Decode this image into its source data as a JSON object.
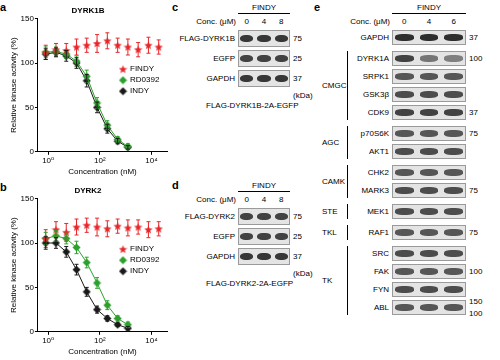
{
  "chart_data": [
    {
      "type": "line",
      "panel_label": "a",
      "title": "DYRK1B",
      "x_label": "Concentration (nM)",
      "y_label": "Relative kinase activity (%)",
      "log": "x",
      "xlim": [
        0.4,
        40000
      ],
      "xticks": [
        {
          "value": 1,
          "label": "10⁰"
        },
        {
          "value": 100,
          "label": "10²"
        },
        {
          "value": 10000,
          "label": "10⁴"
        }
      ],
      "ylim": [
        0,
        150
      ],
      "yticks": [
        0,
        50,
        100,
        150
      ],
      "grid": false,
      "legend": "right",
      "series": [
        {
          "name": "FINDY",
          "color": "#e8262a",
          "marker": "star",
          "line_style": "none",
          "x": [
            0.8,
            2,
            5,
            12.5,
            31,
            78,
            195,
            490,
            1220,
            3050,
            7630,
            19100
          ],
          "values": [
            112,
            115,
            114,
            118,
            120,
            122,
            125,
            120,
            118,
            115,
            120,
            118
          ],
          "errors": [
            8,
            7,
            8,
            9,
            8,
            10,
            9,
            8,
            9,
            8,
            9,
            8
          ]
        },
        {
          "name": "RD0392",
          "color": "#2ca02c",
          "marker": "diamond",
          "line_style": "solid",
          "x": [
            0.8,
            2,
            5,
            12.5,
            31,
            78,
            195,
            490,
            1220
          ],
          "values": [
            112,
            113,
            110,
            102,
            85,
            55,
            30,
            14,
            6
          ],
          "errors": [
            6,
            5,
            5,
            6,
            7,
            6,
            5,
            3,
            3
          ]
        },
        {
          "name": "INDY",
          "color": "#1a1a1a",
          "marker": "diamond",
          "line_style": "solid",
          "x": [
            0.8,
            2,
            5,
            12.5,
            31,
            78,
            195,
            490,
            1220
          ],
          "values": [
            110,
            112,
            108,
            100,
            80,
            50,
            26,
            12,
            5
          ],
          "errors": [
            6,
            5,
            6,
            6,
            7,
            6,
            5,
            3,
            2
          ]
        }
      ]
    },
    {
      "type": "line",
      "panel_label": "b",
      "title": "DYRK2",
      "x_label": "Concentration (nM)",
      "y_label": "Relative kinase activity (%)",
      "log": "x",
      "xlim": [
        0.4,
        40000
      ],
      "xticks": [
        {
          "value": 1,
          "label": "10⁰"
        },
        {
          "value": 100,
          "label": "10²"
        },
        {
          "value": 10000,
          "label": "10⁴"
        }
      ],
      "ylim": [
        0,
        150
      ],
      "yticks": [
        0,
        50,
        100,
        150
      ],
      "grid": false,
      "legend": "right",
      "series": [
        {
          "name": "FINDY",
          "color": "#e8262a",
          "marker": "star",
          "line_style": "none",
          "x": [
            0.8,
            2,
            5,
            12.5,
            31,
            78,
            195,
            490,
            1220,
            3050,
            7630,
            19100
          ],
          "values": [
            105,
            115,
            112,
            118,
            120,
            118,
            116,
            119,
            117,
            118,
            115,
            116
          ],
          "errors": [
            10,
            9,
            10,
            9,
            8,
            10,
            9,
            8,
            9,
            8,
            9,
            8
          ]
        },
        {
          "name": "RD0392",
          "color": "#2ca02c",
          "marker": "diamond",
          "line_style": "solid",
          "x": [
            0.8,
            2,
            5,
            12.5,
            31,
            78,
            195,
            490,
            1220
          ],
          "values": [
            105,
            108,
            105,
            95,
            78,
            55,
            30,
            15,
            8
          ],
          "errors": [
            7,
            6,
            6,
            7,
            6,
            6,
            5,
            3,
            3
          ]
        },
        {
          "name": "INDY",
          "color": "#1a1a1a",
          "marker": "diamond",
          "line_style": "solid",
          "x": [
            0.8,
            2,
            5,
            12.5,
            31,
            78,
            195,
            490,
            1220
          ],
          "values": [
            100,
            100,
            90,
            70,
            45,
            25,
            15,
            8,
            4
          ],
          "errors": [
            7,
            6,
            6,
            6,
            5,
            4,
            3,
            2,
            2
          ]
        }
      ]
    }
  ],
  "blots": [
    {
      "panel_label": "c",
      "treatment": "FINDY",
      "conc_label": "Conc. (μM)",
      "lanes": [
        0,
        4,
        8
      ],
      "unit_label": "(kDa)",
      "caption": "FLAG-DYRK1B-2A-EGFP",
      "sections": [
        {
          "rows": [
            {
              "label": "FLAG-DYRK1B",
              "bands": [
                0.85,
                0.85,
                0.85
              ],
              "markers": [
                75
              ]
            },
            {
              "label": "EGFP",
              "bands": [
                0.8,
                0.8,
                0.8
              ],
              "markers": [
                25
              ]
            },
            {
              "label": "GAPDH",
              "bands": [
                0.85,
                0.85,
                0.85
              ],
              "markers": [
                37
              ]
            }
          ]
        }
      ]
    },
    {
      "panel_label": "d",
      "treatment": "FINDY",
      "conc_label": "Conc. (μM)",
      "lanes": [
        0,
        4,
        8
      ],
      "unit_label": "(kDa)",
      "caption": "FLAG-DYRK2-2A-EGFP",
      "sections": [
        {
          "rows": [
            {
              "label": "FLAG-DYRK2",
              "bands": [
                0.8,
                0.8,
                0.8
              ],
              "markers": [
                75
              ]
            },
            {
              "label": "EGFP",
              "bands": [
                0.8,
                0.8,
                0.8
              ],
              "markers": [
                25
              ]
            },
            {
              "label": "GAPDH",
              "bands": [
                0.85,
                0.85,
                0.85
              ],
              "markers": [
                37
              ]
            }
          ]
        }
      ]
    },
    {
      "panel_label": "e",
      "treatment": "FINDY",
      "conc_label": "Conc. (μM)",
      "lanes": [
        0,
        4,
        6
      ],
      "sections": [
        {
          "rows": [
            {
              "label": "GAPDH",
              "bands": [
                0.9,
                0.9,
                0.9
              ],
              "markers": [
                37
              ]
            }
          ]
        },
        {
          "group": "CMGC",
          "rows": [
            {
              "label": "DYRK1A",
              "bands": [
                0.8,
                0.55,
                0.5
              ],
              "markers": [
                100
              ]
            },
            {
              "label": "SRPK1",
              "bands": [
                0.7,
                0.7,
                0.7
              ]
            },
            {
              "label": "GSK3β",
              "bands": [
                0.75,
                0.75,
                0.75
              ]
            },
            {
              "label": "CDK9",
              "bands": [
                0.8,
                0.8,
                0.8
              ],
              "markers": [
                37
              ]
            }
          ]
        },
        {
          "group": "AGC",
          "rows": [
            {
              "label": "p70S6K",
              "bands": [
                0.7,
                0.7,
                0.7
              ],
              "markers": [
                75
              ]
            },
            {
              "label": "AKT1",
              "bands": [
                0.75,
                0.75,
                0.75
              ]
            }
          ]
        },
        {
          "group": "CAMK",
          "rows": [
            {
              "label": "CHK2",
              "bands": [
                0.7,
                0.7,
                0.7
              ]
            },
            {
              "label": "MARK3",
              "bands": [
                0.75,
                0.75,
                0.75
              ],
              "markers": [
                75
              ]
            }
          ]
        },
        {
          "group": "STE",
          "rows": [
            {
              "label": "MEK1",
              "bands": [
                0.75,
                0.75,
                0.75
              ]
            }
          ]
        },
        {
          "group": "TKL",
          "rows": [
            {
              "label": "RAF1",
              "bands": [
                0.7,
                0.7,
                0.7
              ],
              "markers": [
                75
              ]
            }
          ]
        },
        {
          "group": "TK",
          "rows": [
            {
              "label": "SRC",
              "bands": [
                0.75,
                0.75,
                0.75
              ]
            },
            {
              "label": "FAK",
              "bands": [
                0.7,
                0.7,
                0.7
              ],
              "markers": [
                100
              ]
            },
            {
              "label": "FYN",
              "bands": [
                0.75,
                0.75,
                0.75
              ]
            },
            {
              "label": "ABL",
              "bands": [
                0.7,
                0.7,
                0.7
              ],
              "markers": [
                150,
                100
              ]
            }
          ]
        }
      ]
    }
  ]
}
